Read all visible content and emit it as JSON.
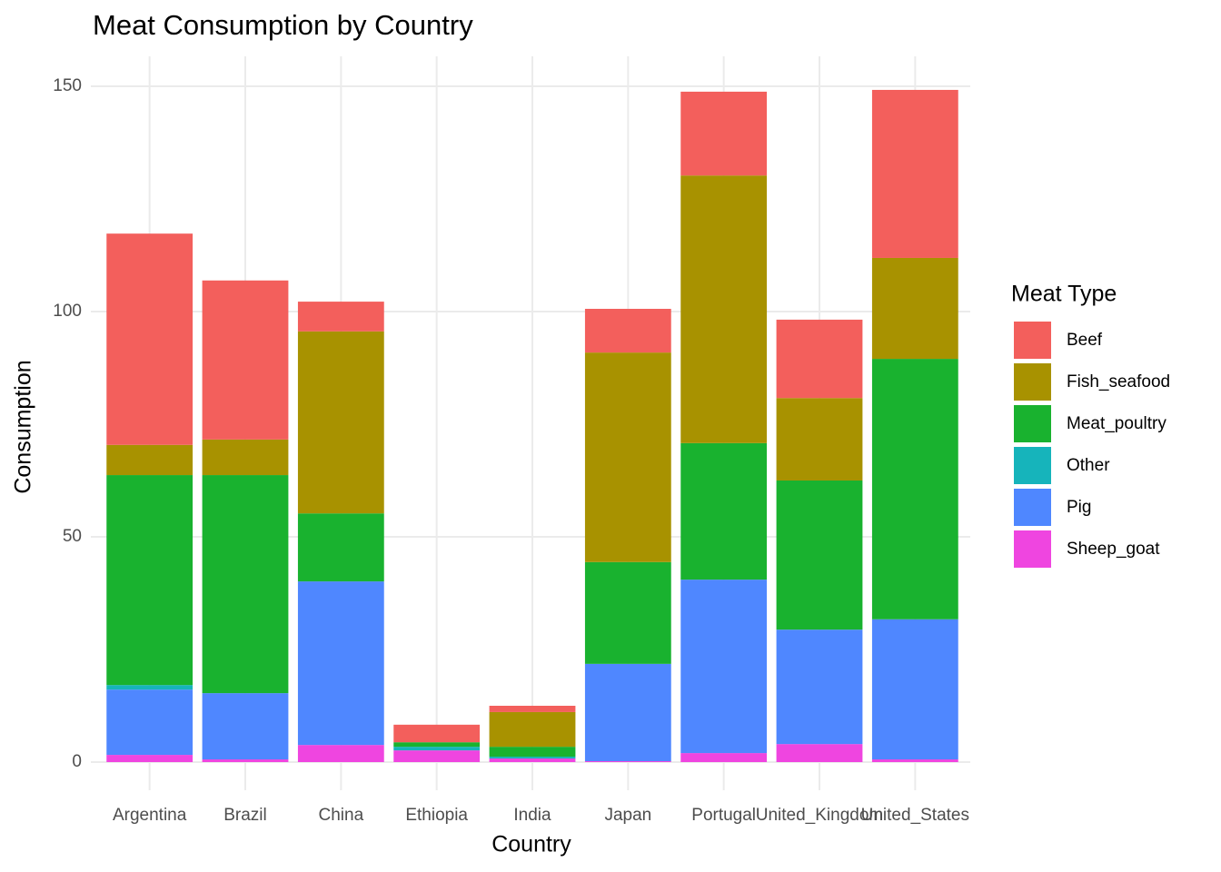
{
  "chart_data": {
    "type": "stacked_bar",
    "title": "Meat Consumption by Country",
    "x_label": "Country",
    "y_label": "Consumption",
    "legend_title": "Meat Type",
    "categories": [
      "Argentina",
      "Brazil",
      "China",
      "Ethiopia",
      "India",
      "Japan",
      "Portugal",
      "United_Kingdom",
      "United_States"
    ],
    "series": [
      {
        "name": "Beef",
        "color": "#f35f5c",
        "values": [
          46.9,
          35.3,
          6.6,
          3.9,
          1.4,
          9.7,
          18.6,
          17.4,
          37.3
        ]
      },
      {
        "name": "Fish_seafood",
        "color": "#a89200",
        "values": [
          6.7,
          7.9,
          40.4,
          0,
          7.7,
          46.5,
          59.4,
          18.3,
          22.4
        ]
      },
      {
        "name": "Meat_poultry",
        "color": "#19b22f",
        "values": [
          46.6,
          48.4,
          15.1,
          1.0,
          2.2,
          22.6,
          30.3,
          33.1,
          57.8
        ]
      },
      {
        "name": "Other",
        "color": "#16b4bb",
        "values": [
          1.0,
          0,
          0,
          0.8,
          0.4,
          0,
          0,
          0,
          0
        ]
      },
      {
        "name": "Pig",
        "color": "#4f87ff",
        "values": [
          14.5,
          14.7,
          36.3,
          0,
          0,
          21.6,
          38.5,
          25.4,
          31.1
        ]
      },
      {
        "name": "Sheep_goat",
        "color": "#ef45e0",
        "values": [
          1.6,
          0.6,
          3.8,
          2.6,
          0.8,
          0.2,
          2.0,
          4.0,
          0.6
        ]
      }
    ],
    "ylim": [
      -6.25,
      156.65
    ],
    "yticks": [
      0,
      50,
      100,
      150
    ],
    "grid": true,
    "legend_position": "right"
  }
}
